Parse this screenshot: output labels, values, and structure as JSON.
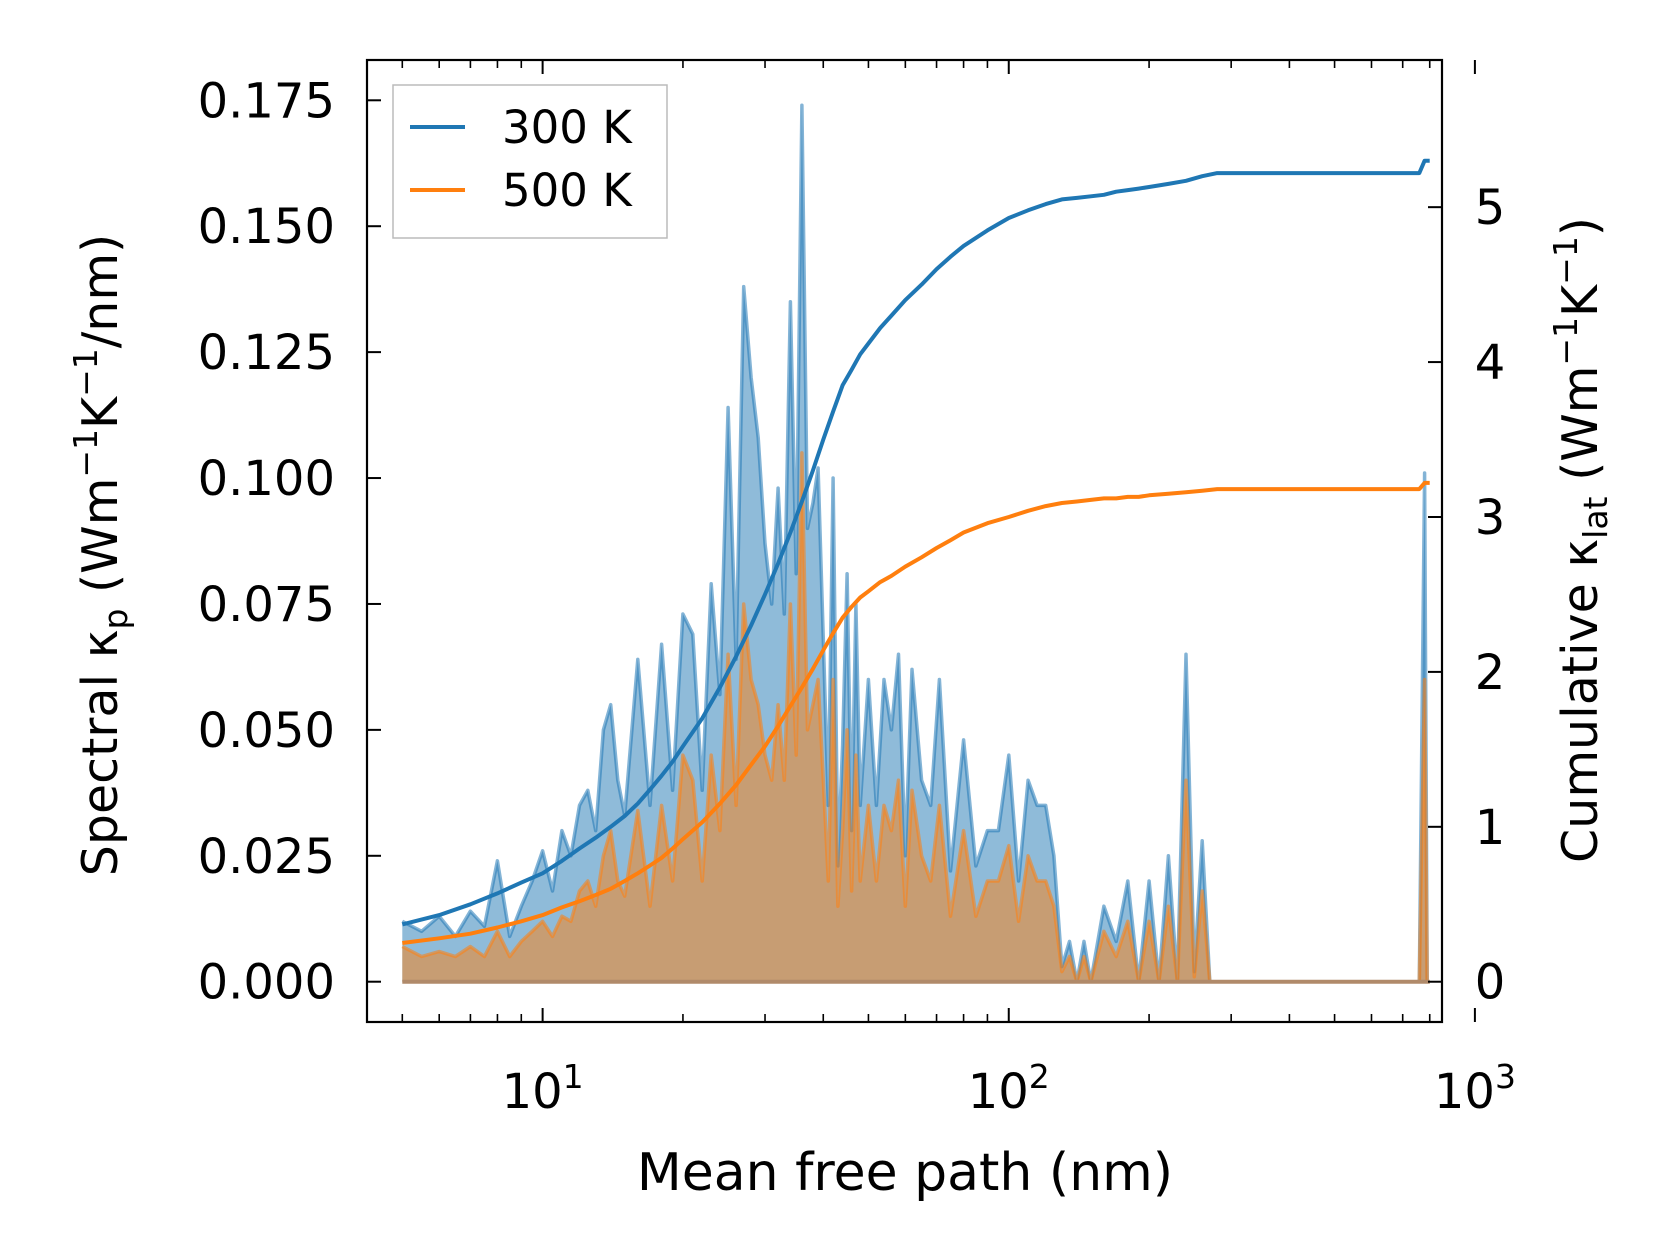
{
  "chart_data": {
    "type": "area+line",
    "x_scale": "log",
    "xlim": [
      4.2,
      850
    ],
    "ylim_left": [
      -0.008,
      0.183
    ],
    "ylim_right": [
      -0.26,
      5.95
    ],
    "xlabel": "Mean free path (nm)",
    "ylabel_left": {
      "main": "Spectral κ",
      "sub": "p",
      "units_a": " (Wm",
      "sup1": "−1",
      "units_b": "K",
      "sup2": "−1",
      "units_c": "/nm)"
    },
    "ylabel_right": {
      "main": "Cumulative κ",
      "sub": "lat",
      "units_a": " (Wm",
      "sup1": "−1",
      "units_b": "K",
      "sup2": "−1",
      "units_c": ")"
    },
    "x_ticks": [
      {
        "value": 10,
        "base": "10",
        "exp": "1"
      },
      {
        "value": 100,
        "base": "10",
        "exp": "2"
      },
      {
        "value": 1000,
        "base": "10",
        "exp": "3"
      }
    ],
    "y_ticks_left": [
      "0.000",
      "0.025",
      "0.050",
      "0.075",
      "0.100",
      "0.125",
      "0.150",
      "0.175"
    ],
    "y_ticks_right": [
      "0",
      "1",
      "2",
      "3",
      "4",
      "5"
    ],
    "legend": {
      "position": "top-left",
      "entries": [
        {
          "label": "300 K",
          "color": "#1f77b4"
        },
        {
          "label": "500 K",
          "color": "#ff7f0e"
        }
      ]
    },
    "spectral": {
      "x": [
        5,
        5.5,
        6,
        6.5,
        7,
        7.5,
        8,
        8.5,
        9,
        9.5,
        10,
        10.5,
        11,
        11.5,
        12,
        12.5,
        13,
        13.5,
        14,
        14.5,
        15,
        16,
        17,
        18,
        19,
        20,
        21,
        22,
        23,
        24,
        25,
        26,
        27,
        28,
        29,
        30,
        31,
        32,
        33,
        34,
        35,
        36,
        37,
        38,
        39,
        40,
        41,
        42,
        43,
        44,
        45,
        46,
        47,
        48,
        50,
        52,
        54,
        56,
        58,
        60,
        62,
        65,
        68,
        71,
        75,
        80,
        85,
        90,
        95,
        100,
        105,
        110,
        115,
        120,
        125,
        130,
        135,
        140,
        145,
        150,
        160,
        170,
        180,
        190,
        200,
        210,
        220,
        230,
        240,
        250,
        260,
        270,
        280,
        300,
        400,
        500,
        600,
        700,
        760,
        780,
        790,
        800
      ],
      "series": [
        {
          "name": "300 K",
          "color": "#1f77b4",
          "values": [
            0.012,
            0.01,
            0.013,
            0.009,
            0.014,
            0.011,
            0.024,
            0.009,
            0.015,
            0.02,
            0.026,
            0.018,
            0.03,
            0.025,
            0.035,
            0.038,
            0.03,
            0.05,
            0.055,
            0.04,
            0.033,
            0.064,
            0.035,
            0.067,
            0.038,
            0.073,
            0.069,
            0.038,
            0.079,
            0.057,
            0.114,
            0.064,
            0.138,
            0.12,
            0.108,
            0.087,
            0.075,
            0.098,
            0.073,
            0.135,
            0.081,
            0.174,
            0.09,
            0.095,
            0.102,
            0.068,
            0.035,
            0.1,
            0.023,
            0.047,
            0.081,
            0.03,
            0.075,
            0.035,
            0.06,
            0.035,
            0.06,
            0.05,
            0.065,
            0.025,
            0.062,
            0.04,
            0.035,
            0.06,
            0.022,
            0.048,
            0.023,
            0.03,
            0.03,
            0.045,
            0.02,
            0.04,
            0.035,
            0.035,
            0.025,
            0.003,
            0.008,
            0.0,
            0.008,
            0.0,
            0.015,
            0.008,
            0.02,
            0.0,
            0.02,
            0.0,
            0.025,
            0.0,
            0.065,
            0.002,
            0.028,
            0.0,
            0.0,
            0.0,
            0.0,
            0.0,
            0.0,
            0.0,
            0.0,
            0.101,
            0.0,
            0.0
          ]
        },
        {
          "name": "500 K",
          "color": "#ff7f0e",
          "values": [
            0.007,
            0.005,
            0.006,
            0.005,
            0.007,
            0.005,
            0.01,
            0.005,
            0.008,
            0.01,
            0.012,
            0.009,
            0.013,
            0.012,
            0.018,
            0.02,
            0.015,
            0.025,
            0.03,
            0.02,
            0.017,
            0.034,
            0.015,
            0.035,
            0.02,
            0.045,
            0.04,
            0.02,
            0.045,
            0.03,
            0.065,
            0.035,
            0.075,
            0.06,
            0.055,
            0.045,
            0.04,
            0.055,
            0.04,
            0.075,
            0.045,
            0.105,
            0.05,
            0.055,
            0.06,
            0.04,
            0.02,
            0.06,
            0.015,
            0.03,
            0.05,
            0.018,
            0.045,
            0.02,
            0.035,
            0.02,
            0.035,
            0.03,
            0.04,
            0.015,
            0.038,
            0.025,
            0.02,
            0.035,
            0.013,
            0.03,
            0.013,
            0.02,
            0.02,
            0.027,
            0.012,
            0.025,
            0.02,
            0.02,
            0.015,
            0.002,
            0.005,
            0.0,
            0.005,
            0.0,
            0.01,
            0.005,
            0.012,
            0.0,
            0.012,
            0.0,
            0.015,
            0.0,
            0.04,
            0.001,
            0.018,
            0.0,
            0.0,
            0.0,
            0.0,
            0.0,
            0.0,
            0.0,
            0.0,
            0.06,
            0.0,
            0.0
          ]
        }
      ]
    },
    "cumulative": {
      "series": [
        {
          "name": "300 K",
          "color": "#1f77b4",
          "x": [
            5,
            6,
            7,
            8,
            9,
            10,
            11,
            12,
            13,
            14,
            15,
            16,
            17,
            18,
            19,
            20,
            22,
            24,
            26,
            28,
            30,
            32,
            34,
            36,
            38,
            40,
            42,
            44,
            46,
            48,
            50,
            53,
            56,
            60,
            65,
            70,
            75,
            80,
            90,
            100,
            110,
            120,
            130,
            140,
            150,
            160,
            170,
            180,
            190,
            200,
            220,
            240,
            260,
            280,
            300,
            400,
            500,
            600,
            700,
            760,
            780,
            800
          ],
          "values": [
            0.37,
            0.43,
            0.5,
            0.57,
            0.64,
            0.7,
            0.78,
            0.86,
            0.93,
            1.0,
            1.07,
            1.15,
            1.24,
            1.33,
            1.42,
            1.52,
            1.7,
            1.9,
            2.1,
            2.3,
            2.5,
            2.7,
            2.9,
            3.1,
            3.3,
            3.5,
            3.68,
            3.85,
            3.95,
            4.05,
            4.12,
            4.22,
            4.3,
            4.4,
            4.5,
            4.6,
            4.68,
            4.75,
            4.85,
            4.93,
            4.98,
            5.02,
            5.05,
            5.06,
            5.07,
            5.08,
            5.1,
            5.11,
            5.12,
            5.13,
            5.15,
            5.17,
            5.2,
            5.22,
            5.22,
            5.22,
            5.22,
            5.22,
            5.22,
            5.22,
            5.3,
            5.3
          ]
        },
        {
          "name": "500 K",
          "color": "#ff7f0e",
          "x": [
            5,
            6,
            7,
            8,
            9,
            10,
            11,
            12,
            13,
            14,
            15,
            16,
            17,
            18,
            19,
            20,
            22,
            24,
            26,
            28,
            30,
            32,
            34,
            36,
            38,
            40,
            42,
            44,
            46,
            48,
            50,
            53,
            56,
            60,
            65,
            70,
            75,
            80,
            90,
            100,
            110,
            120,
            130,
            140,
            150,
            160,
            170,
            180,
            190,
            200,
            220,
            240,
            260,
            280,
            300,
            400,
            500,
            600,
            700,
            760,
            780,
            800
          ],
          "values": [
            0.25,
            0.28,
            0.31,
            0.35,
            0.39,
            0.43,
            0.48,
            0.52,
            0.56,
            0.6,
            0.65,
            0.7,
            0.75,
            0.8,
            0.86,
            0.92,
            1.03,
            1.15,
            1.27,
            1.4,
            1.52,
            1.65,
            1.78,
            1.9,
            2.02,
            2.14,
            2.25,
            2.35,
            2.42,
            2.48,
            2.52,
            2.58,
            2.62,
            2.68,
            2.74,
            2.8,
            2.85,
            2.9,
            2.96,
            3.0,
            3.04,
            3.07,
            3.09,
            3.1,
            3.11,
            3.12,
            3.12,
            3.13,
            3.13,
            3.14,
            3.15,
            3.16,
            3.17,
            3.18,
            3.18,
            3.18,
            3.18,
            3.18,
            3.18,
            3.18,
            3.22,
            3.22
          ]
        }
      ]
    }
  }
}
